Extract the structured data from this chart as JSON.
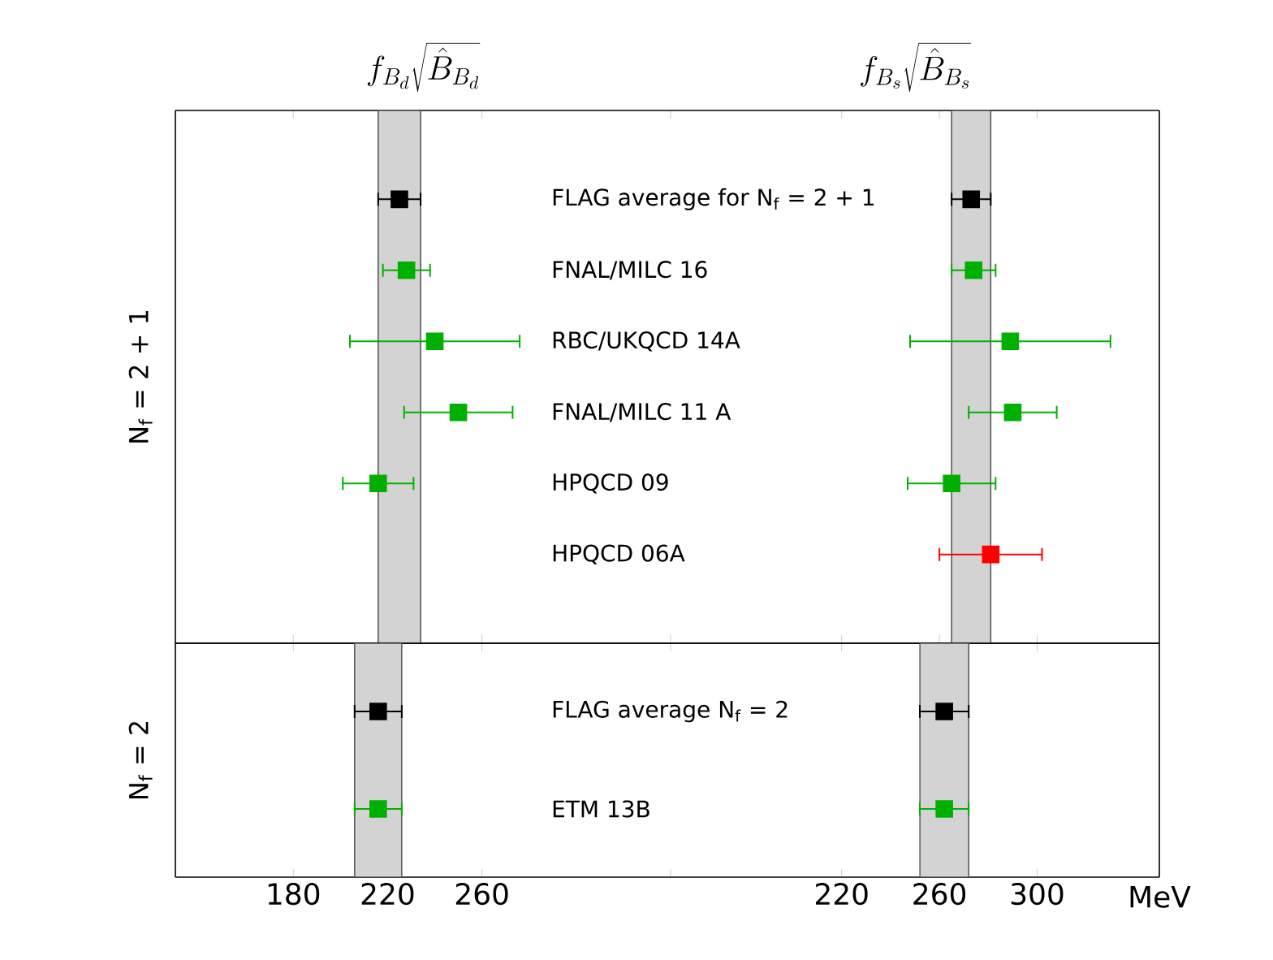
{
  "chart_data": [
    {
      "type": "scatter",
      "orientation": "horizontal",
      "marker": "square",
      "title": "f_{B_d}\\sqrt{\\hat{B}_{B_d}}",
      "ylabel": "N$_{f}$ = 2 + 1",
      "tick_labels": "y",
      "categories": [
        "FLAG average for N$_{f}$ = 2 + 1",
        "FNAL/MILC 16",
        "RBC/UKQCD 14A",
        "FNAL/MILC 11 A",
        "HPQCD 09",
        "HPQCD 06A"
      ],
      "xlim": [
        130,
        340
      ],
      "xticks": [
        180,
        260,
        340
      ],
      "bands": [
        {
          "axis": "x",
          "from": 216,
          "to": 234,
          "color": "#d3d3d3"
        }
      ],
      "series": [
        {
          "color": "#000000",
          "values": [
            225,
            null,
            null,
            null,
            null,
            null
          ],
          "errors": [
            9,
            null,
            null,
            null,
            null,
            null
          ]
        },
        {
          "color": "#00b000",
          "values": [
            null,
            228,
            240,
            null,
            216,
            null
          ],
          "errors": [
            null,
            10,
            36,
            null,
            15,
            null
          ]
        },
        {
          "color": "#00b000",
          "values": [
            null,
            null,
            null,
            250,
            null,
            null
          ],
          "errors": [
            null,
            null,
            null,
            23,
            null,
            null
          ]
        }
      ]
    },
    {
      "type": "scatter",
      "orientation": "horizontal",
      "marker": "square",
      "title": "f_{B_s}\\sqrt{\\hat{B}_{B_s}}",
      "tick_labels": false,
      "categories": [
        null,
        null,
        null,
        null,
        null,
        null
      ],
      "xlim": [
        150,
        350
      ],
      "xticks": [
        220,
        260,
        300
      ],
      "bands": [
        {
          "axis": "x",
          "from": 265,
          "to": 281,
          "color": "#d3d3d3"
        }
      ],
      "series": [
        {
          "color": "#000000",
          "values": [
            273,
            null,
            null,
            null,
            null,
            null
          ],
          "errors": [
            8,
            null,
            null,
            null,
            null,
            null
          ]
        },
        {
          "color": "#00b000",
          "values": [
            null,
            274,
            289,
            null,
            265,
            null
          ],
          "errors": [
            null,
            9,
            41,
            null,
            18,
            null
          ]
        },
        {
          "color": "#00b000",
          "values": [
            null,
            null,
            null,
            290,
            null,
            null
          ],
          "errors": [
            null,
            null,
            null,
            18,
            null,
            null
          ]
        },
        {
          "color": "#ff0000",
          "values": [
            null,
            null,
            null,
            null,
            null,
            281
          ],
          "errors": [
            null,
            null,
            null,
            null,
            null,
            21
          ]
        }
      ]
    },
    {
      "type": "scatter",
      "orientation": "horizontal",
      "marker": "square",
      "ylabel": "N$_{f}$ = 2",
      "categories": [
        "FLAG average N$_{f}$ = 2",
        "ETM 13B"
      ],
      "xlim": [
        130,
        340
      ],
      "xticks": [
        180,
        220,
        260,
        {
          "value": 340,
          "label": null
        }
      ],
      "bands": [
        {
          "axis": "x",
          "from": 206,
          "to": 226,
          "color": "#d3d3d3"
        }
      ],
      "series": [
        {
          "color": "#000000",
          "values": [
            216,
            null
          ],
          "errors": [
            10,
            null
          ]
        },
        {
          "color": "#00b000",
          "values": [
            null,
            216
          ],
          "errors": [
            null,
            10
          ]
        }
      ]
    },
    {
      "type": "scatter",
      "orientation": "horizontal",
      "marker": "square",
      "xlabel": "MeV",
      "tick_labels": "x",
      "categories": [
        null,
        null
      ],
      "xlim": [
        150,
        350
      ],
      "xticks": [
        220,
        260,
        300
      ],
      "bands": [
        {
          "axis": "x",
          "from": 252,
          "to": 272,
          "color": "#d3d3d3"
        }
      ],
      "series": [
        {
          "color": "#000000",
          "values": [
            262,
            null
          ],
          "errors": [
            10,
            null
          ]
        },
        {
          "color": "#00b000",
          "values": [
            null,
            262
          ],
          "errors": [
            null,
            10
          ]
        }
      ]
    }
  ]
}
